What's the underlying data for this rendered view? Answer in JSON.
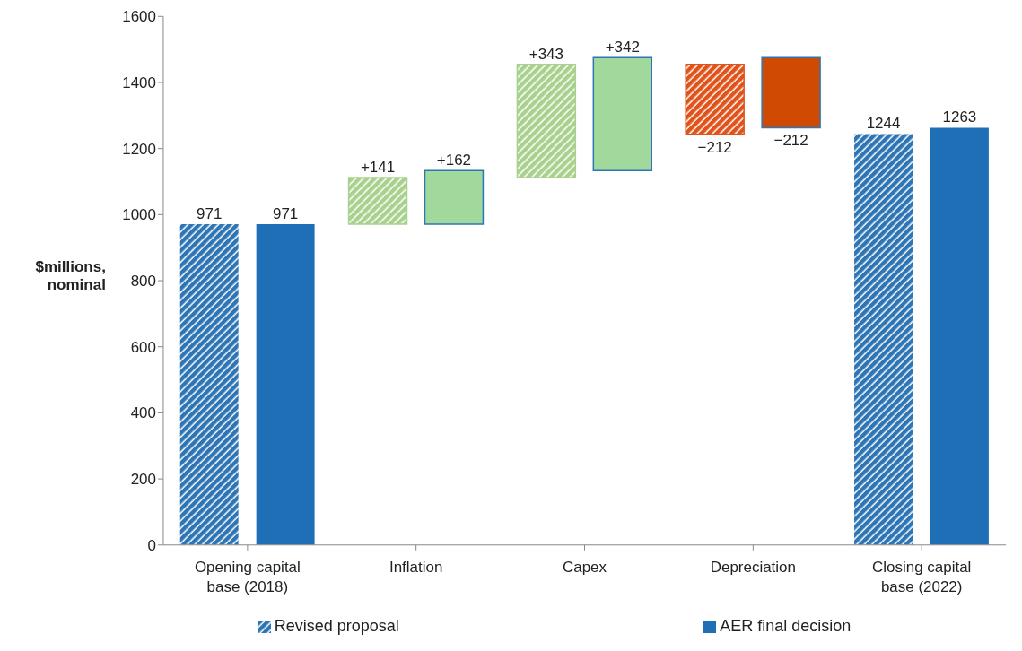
{
  "chart_data": {
    "type": "bar",
    "ylabel": "$millions, nominal",
    "categories": [
      "Opening capital base (2018)",
      "Inflation",
      "Capex",
      "Depreciation",
      "Closing capital base (2022)"
    ],
    "series": [
      {
        "name": "Revised proposal",
        "colors": [
          "#2e75b6",
          "#a9d18e",
          "#a9d18e",
          "#e0541c",
          "#2e75b6"
        ],
        "values": [
          971,
          141,
          343,
          -212,
          1244
        ],
        "base": [
          0,
          971,
          1112,
          1455,
          0
        ],
        "value_labels": [
          "971",
          "+141",
          "+343",
          "−212",
          "1244"
        ]
      },
      {
        "name": "AER final decision",
        "colors": [
          "#1f6fb6",
          "#a0d99b",
          "#a0d99b",
          "#d04a02",
          "#1f6fb6"
        ],
        "values": [
          971,
          162,
          342,
          -212,
          1263
        ],
        "base": [
          0,
          971,
          1133,
          1475,
          0
        ],
        "value_labels": [
          "971",
          "+162",
          "+342",
          "−212",
          "1263"
        ]
      }
    ],
    "ylim": [
      0,
      1600
    ],
    "yticks": [
      0,
      200,
      400,
      600,
      800,
      1000,
      1200,
      1400,
      1600
    ],
    "legend": "bottom"
  }
}
